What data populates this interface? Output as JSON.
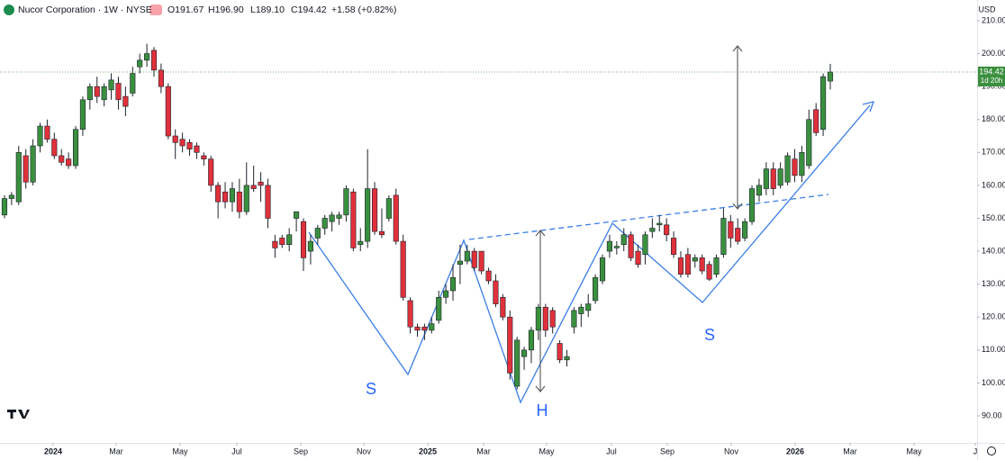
{
  "chart_data": {
    "type": "candlestick",
    "header": {
      "title": "Nucor Corporation · 1W · NYSE",
      "open": "O191.67",
      "high": "H196.90",
      "low": "L189.10",
      "close": "C194.42",
      "change": "+1.58 (+0.82%)"
    },
    "currency": "USD",
    "countdown": "1d 20h",
    "annotations": [
      "S",
      "H",
      "S"
    ],
    "up_color": "#3a8f3e",
    "down_color": "#e0313b",
    "grid": false,
    "ylim": [
      81.79,
      216.29
    ],
    "yticks": [
      {
        "value": 90,
        "label": "90.00"
      },
      {
        "value": 100,
        "label": "100.00"
      },
      {
        "value": 110,
        "label": "110.00"
      },
      {
        "value": 120,
        "label": "120.00"
      },
      {
        "value": 130,
        "label": "130.00"
      },
      {
        "value": 140,
        "label": "140.00"
      },
      {
        "value": 150,
        "label": "150.00"
      },
      {
        "value": 160,
        "label": "160.00"
      },
      {
        "value": 170,
        "label": "170.00"
      },
      {
        "value": 180,
        "label": "180.00"
      },
      {
        "value": 190,
        "label": "190.00"
      },
      {
        "value": 200,
        "label": "200.00"
      },
      {
        "value": 210,
        "label": "210.00"
      }
    ],
    "xlim": [
      -0.63,
      136.62
    ],
    "xticks": [
      {
        "value": 6.83,
        "label": "2024"
      },
      {
        "value": 15.69,
        "label": "Mar"
      },
      {
        "value": 24.67,
        "label": "May"
      },
      {
        "value": 32.64,
        "label": "Jul"
      },
      {
        "value": 41.62,
        "label": "Sep"
      },
      {
        "value": 50.47,
        "label": "Nov"
      },
      {
        "value": 59.46,
        "label": "2025"
      },
      {
        "value": 67.3,
        "label": "Mar"
      },
      {
        "value": 76.15,
        "label": "May"
      },
      {
        "value": 85.26,
        "label": "Jul"
      },
      {
        "value": 93.11,
        "label": "Sep"
      },
      {
        "value": 102.09,
        "label": "Nov"
      },
      {
        "value": 111.07,
        "label": "2026"
      },
      {
        "value": 118.79,
        "label": "Mar"
      },
      {
        "value": 127.77,
        "label": "May"
      },
      {
        "value": 136.37,
        "label": "J"
      }
    ],
    "candles": [
      {
        "open": 151,
        "high": 157,
        "low": 150,
        "close": 156
      },
      {
        "open": 156,
        "high": 158,
        "low": 154,
        "close": 157
      },
      {
        "open": 155,
        "high": 172,
        "low": 154,
        "close": 170
      },
      {
        "open": 169,
        "high": 171,
        "low": 159,
        "close": 161
      },
      {
        "open": 161,
        "high": 174,
        "low": 160,
        "close": 172
      },
      {
        "open": 172,
        "high": 179,
        "low": 170,
        "close": 178
      },
      {
        "open": 178,
        "high": 180,
        "low": 173,
        "close": 174
      },
      {
        "open": 174,
        "high": 176,
        "low": 168,
        "close": 169
      },
      {
        "open": 169,
        "high": 171,
        "low": 166,
        "close": 167
      },
      {
        "open": 168,
        "high": 170,
        "low": 165,
        "close": 166
      },
      {
        "open": 166,
        "high": 178,
        "low": 165,
        "close": 177
      },
      {
        "open": 177,
        "high": 187,
        "low": 175,
        "close": 186
      },
      {
        "open": 186,
        "high": 191,
        "low": 183,
        "close": 190
      },
      {
        "open": 190,
        "high": 193,
        "low": 185,
        "close": 187
      },
      {
        "open": 186,
        "high": 191,
        "low": 184,
        "close": 190
      },
      {
        "open": 189,
        "high": 194,
        "low": 186,
        "close": 192
      },
      {
        "open": 191,
        "high": 193,
        "low": 183,
        "close": 186
      },
      {
        "open": 187,
        "high": 190,
        "low": 181,
        "close": 184
      },
      {
        "open": 188,
        "high": 196,
        "low": 187,
        "close": 194
      },
      {
        "open": 196,
        "high": 200,
        "low": 194,
        "close": 198
      },
      {
        "open": 198,
        "high": 203,
        "low": 196,
        "close": 200
      },
      {
        "open": 201,
        "high": 202,
        "low": 193,
        "close": 195
      },
      {
        "open": 195,
        "high": 197,
        "low": 188,
        "close": 190
      },
      {
        "open": 190,
        "high": 191,
        "low": 174,
        "close": 175
      },
      {
        "open": 175,
        "high": 177,
        "low": 168,
        "close": 173
      },
      {
        "open": 174,
        "high": 176,
        "low": 170,
        "close": 172
      },
      {
        "open": 173,
        "high": 174,
        "low": 169,
        "close": 171
      },
      {
        "open": 172,
        "high": 173,
        "low": 168,
        "close": 170
      },
      {
        "open": 169,
        "high": 170,
        "low": 166,
        "close": 168
      },
      {
        "open": 168,
        "high": 169,
        "low": 158,
        "close": 160
      },
      {
        "open": 160,
        "high": 161,
        "low": 150,
        "close": 155
      },
      {
        "open": 158,
        "high": 161,
        "low": 153,
        "close": 155
      },
      {
        "open": 155,
        "high": 161,
        "low": 152,
        "close": 159
      },
      {
        "open": 158,
        "high": 162,
        "low": 150,
        "close": 152
      },
      {
        "open": 152,
        "high": 167,
        "low": 151,
        "close": 160
      },
      {
        "open": 160,
        "high": 166,
        "low": 158,
        "close": 159
      },
      {
        "open": 161,
        "high": 164,
        "low": 155,
        "close": 160
      },
      {
        "open": 160,
        "high": 162,
        "low": 147,
        "close": 150
      },
      {
        "open": 143,
        "high": 145,
        "low": 138,
        "close": 141
      },
      {
        "open": 144,
        "high": 145,
        "low": 141,
        "close": 142
      },
      {
        "open": 142,
        "high": 147,
        "low": 140,
        "close": 145
      },
      {
        "open": 150,
        "high": 152,
        "low": 146,
        "close": 152
      },
      {
        "open": 149,
        "high": 150,
        "low": 134,
        "close": 138
      },
      {
        "open": 140,
        "high": 145,
        "low": 136,
        "close": 143
      },
      {
        "open": 144,
        "high": 148,
        "low": 142,
        "close": 147
      },
      {
        "open": 147,
        "high": 151,
        "low": 145,
        "close": 150
      },
      {
        "open": 149,
        "high": 152,
        "low": 146,
        "close": 151
      },
      {
        "open": 150,
        "high": 152,
        "low": 148,
        "close": 151
      },
      {
        "open": 151,
        "high": 160,
        "low": 149,
        "close": 159
      },
      {
        "open": 158,
        "high": 159,
        "low": 140,
        "close": 141
      },
      {
        "open": 142,
        "high": 147,
        "low": 140,
        "close": 143
      },
      {
        "open": 143,
        "high": 171,
        "low": 141,
        "close": 159
      },
      {
        "open": 159,
        "high": 161,
        "low": 145,
        "close": 146
      },
      {
        "open": 146,
        "high": 153,
        "low": 144,
        "close": 145
      },
      {
        "open": 150,
        "high": 157,
        "low": 149,
        "close": 156
      },
      {
        "open": 157,
        "high": 159,
        "low": 142,
        "close": 143
      },
      {
        "open": 143,
        "high": 145,
        "low": 125,
        "close": 126
      },
      {
        "open": 125,
        "high": 126,
        "low": 115,
        "close": 117
      },
      {
        "open": 117,
        "high": 118,
        "low": 114,
        "close": 116
      },
      {
        "open": 117,
        "high": 118,
        "low": 113,
        "close": 116
      },
      {
        "open": 116,
        "high": 120,
        "low": 115,
        "close": 118
      },
      {
        "open": 119,
        "high": 128,
        "low": 118,
        "close": 126
      },
      {
        "open": 126,
        "high": 130,
        "low": 124,
        "close": 128
      },
      {
        "open": 128,
        "high": 136,
        "low": 125,
        "close": 132
      },
      {
        "open": 136,
        "high": 142,
        "low": 130,
        "close": 137
      },
      {
        "open": 137,
        "high": 142,
        "low": 136,
        "close": 140
      },
      {
        "open": 140,
        "high": 141,
        "low": 134,
        "close": 135
      },
      {
        "open": 140,
        "high": 140,
        "low": 133,
        "close": 134
      },
      {
        "open": 134,
        "high": 135,
        "low": 130,
        "close": 131
      },
      {
        "open": 131,
        "high": 133,
        "low": 123,
        "close": 124
      },
      {
        "open": 126,
        "high": 127,
        "low": 119,
        "close": 120
      },
      {
        "open": 120,
        "high": 122,
        "low": 101,
        "close": 103
      },
      {
        "open": 99,
        "high": 114,
        "low": 98,
        "close": 113
      },
      {
        "open": 108,
        "high": 111,
        "low": 104,
        "close": 110
      },
      {
        "open": 110,
        "high": 117,
        "low": 106,
        "close": 116
      },
      {
        "open": 116,
        "high": 124,
        "low": 113,
        "close": 123
      },
      {
        "open": 123,
        "high": 124,
        "low": 114,
        "close": 116
      },
      {
        "open": 122,
        "high": 123,
        "low": 115,
        "close": 117
      },
      {
        "open": 112,
        "high": 113,
        "low": 106,
        "close": 107
      },
      {
        "open": 107,
        "high": 110,
        "low": 105,
        "close": 108
      },
      {
        "open": 117,
        "high": 123,
        "low": 115,
        "close": 122
      },
      {
        "open": 121,
        "high": 124,
        "low": 117,
        "close": 123
      },
      {
        "open": 122,
        "high": 127,
        "low": 120,
        "close": 124
      },
      {
        "open": 125,
        "high": 133,
        "low": 124,
        "close": 132
      },
      {
        "open": 131,
        "high": 139,
        "low": 130,
        "close": 138
      },
      {
        "open": 140,
        "high": 145,
        "low": 138,
        "close": 143
      },
      {
        "open": 141,
        "high": 143,
        "low": 139,
        "close": 141.5
      },
      {
        "open": 142,
        "high": 147,
        "low": 140,
        "close": 145
      },
      {
        "open": 145,
        "high": 146,
        "low": 137,
        "close": 138
      },
      {
        "open": 140,
        "high": 142,
        "low": 135,
        "close": 136
      },
      {
        "open": 139,
        "high": 146,
        "low": 136,
        "close": 145
      },
      {
        "open": 146,
        "high": 150,
        "low": 144,
        "close": 147
      },
      {
        "open": 148,
        "high": 151,
        "low": 146,
        "close": 148.5
      },
      {
        "open": 148,
        "high": 150,
        "low": 143,
        "close": 145
      },
      {
        "open": 144,
        "high": 146,
        "low": 138,
        "close": 139
      },
      {
        "open": 138,
        "high": 140,
        "low": 132,
        "close": 133
      },
      {
        "open": 139,
        "high": 141,
        "low": 132,
        "close": 133
      },
      {
        "open": 137,
        "high": 139,
        "low": 135,
        "close": 138
      },
      {
        "open": 138,
        "high": 139,
        "low": 133,
        "close": 134
      },
      {
        "open": 136,
        "high": 137,
        "low": 131,
        "close": 131.5
      },
      {
        "open": 133,
        "high": 139,
        "low": 132,
        "close": 138
      },
      {
        "open": 139,
        "high": 153,
        "low": 138,
        "close": 150
      },
      {
        "open": 149,
        "high": 151,
        "low": 141,
        "close": 144
      },
      {
        "open": 147,
        "high": 150,
        "low": 142,
        "close": 143
      },
      {
        "open": 144,
        "high": 150,
        "low": 143,
        "close": 149
      },
      {
        "open": 149,
        "high": 160,
        "low": 148,
        "close": 159
      },
      {
        "open": 157,
        "high": 162,
        "low": 155,
        "close": 160
      },
      {
        "open": 159,
        "high": 167,
        "low": 157,
        "close": 165
      },
      {
        "open": 165,
        "high": 167,
        "low": 157,
        "close": 159
      },
      {
        "open": 160,
        "high": 167,
        "low": 159,
        "close": 165
      },
      {
        "open": 161,
        "high": 170,
        "low": 160,
        "close": 169
      },
      {
        "open": 168,
        "high": 171,
        "low": 161,
        "close": 163
      },
      {
        "open": 163,
        "high": 172,
        "low": 161,
        "close": 170
      },
      {
        "open": 166,
        "high": 183,
        "low": 165,
        "close": 180
      },
      {
        "open": 183,
        "high": 185,
        "low": 175,
        "close": 176
      },
      {
        "open": 177,
        "high": 194,
        "low": 175,
        "close": 193
      },
      {
        "open": 191.67,
        "high": 196.9,
        "low": 189.1,
        "close": 194.42
      }
    ]
  }
}
